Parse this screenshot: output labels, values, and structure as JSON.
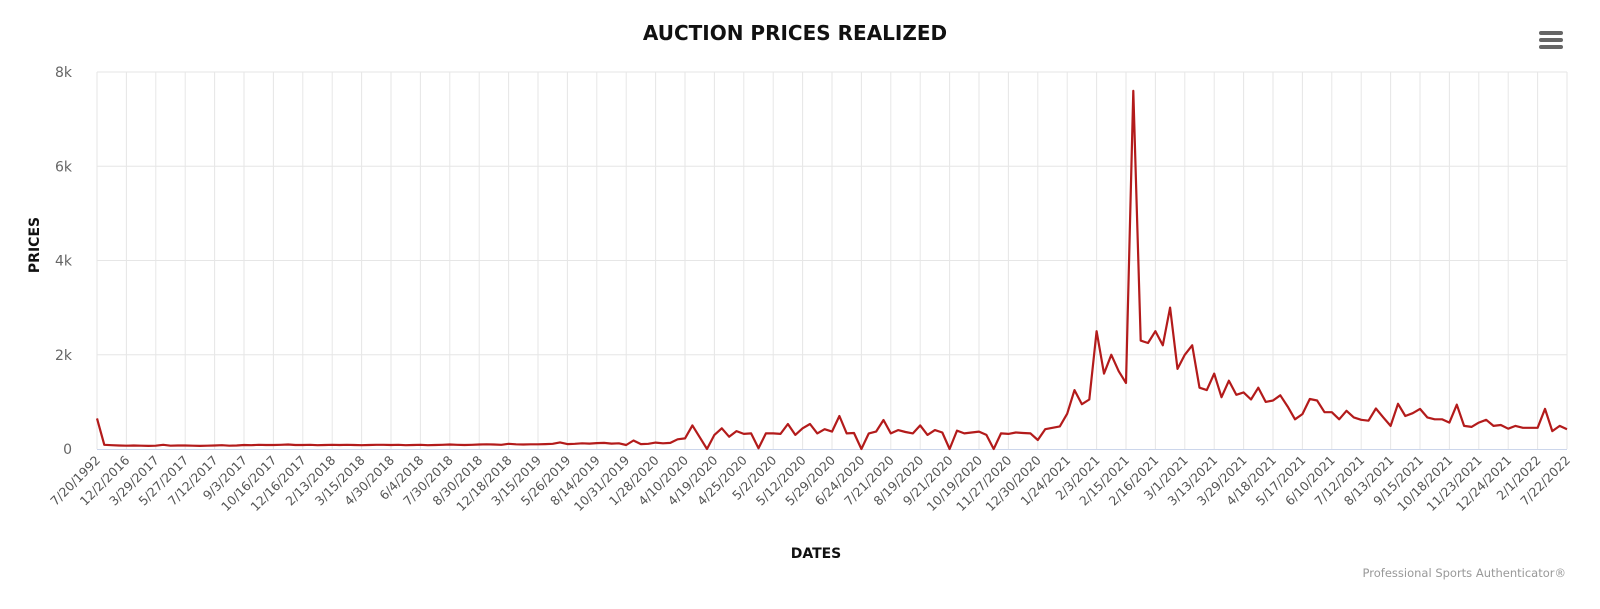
{
  "chart_data": {
    "type": "line",
    "title": "AUCTION PRICES REALIZED",
    "xlabel": "DATES",
    "ylabel": "PRICES",
    "credits": "Professional Sports Authenticator®",
    "ylim": [
      0,
      8000
    ],
    "y_ticks": [
      0,
      2000,
      4000,
      6000,
      8000
    ],
    "y_tick_labels": [
      "0",
      "2k",
      "4k",
      "6k",
      "8k"
    ],
    "grid": true,
    "legend": "none",
    "line_color": "#b31b1b",
    "x_tick_labels": [
      "7/20/1992",
      "12/2/2016",
      "3/29/2017",
      "5/27/2017",
      "7/12/2017",
      "9/3/2017",
      "10/16/2017",
      "12/16/2017",
      "2/13/2018",
      "3/15/2018",
      "4/30/2018",
      "6/4/2018",
      "7/30/2018",
      "8/30/2018",
      "12/18/2018",
      "3/15/2019",
      "5/26/2019",
      "8/14/2019",
      "10/31/2019",
      "1/28/2020",
      "4/10/2020",
      "4/19/2020",
      "4/25/2020",
      "5/2/2020",
      "5/12/2020",
      "5/29/2020",
      "6/24/2020",
      "7/21/2020",
      "8/19/2020",
      "9/21/2020",
      "10/19/2020",
      "11/27/2020",
      "12/30/2020",
      "1/24/2021",
      "2/3/2021",
      "2/15/2021",
      "2/16/2021",
      "3/1/2021",
      "3/13/2021",
      "3/29/2021",
      "4/18/2021",
      "5/17/2021",
      "6/10/2021",
      "7/12/2021",
      "8/13/2021",
      "9/15/2021",
      "10/18/2021",
      "11/23/2021",
      "12/24/2021",
      "2/1/2022",
      "7/22/2022"
    ],
    "series": [
      {
        "values": [
          650,
          90,
          80,
          75,
          70,
          75,
          70,
          65,
          70,
          90,
          70,
          75,
          75,
          70,
          65,
          70,
          75,
          80,
          70,
          75,
          85,
          80,
          90,
          85,
          85,
          90,
          95,
          85,
          85,
          90,
          80,
          85,
          90,
          85,
          90,
          85,
          80,
          85,
          90,
          90,
          85,
          90,
          80,
          85,
          90,
          80,
          85,
          90,
          95,
          90,
          85,
          90,
          95,
          100,
          95,
          90,
          110,
          100,
          95,
          100,
          100,
          105,
          110,
          140,
          105,
          110,
          120,
          115,
          125,
          130,
          115,
          120,
          85,
          180,
          105,
          110,
          135,
          120,
          130,
          205,
          225,
          500,
          250,
          0,
          300,
          440,
          260,
          380,
          320,
          330,
          15,
          330,
          330,
          320,
          530,
          300,
          440,
          530,
          330,
          420,
          370,
          700,
          330,
          340,
          0,
          330,
          370,
          615,
          330,
          400,
          360,
          330,
          500,
          300,
          400,
          350,
          0,
          390,
          330,
          350,
          370,
          300,
          0,
          330,
          320,
          350,
          340,
          330,
          190,
          420,
          450,
          480,
          750,
          1250,
          950,
          1050,
          2500,
          1600,
          2000,
          1650,
          1400,
          7600,
          2300,
          2250,
          2500,
          2200,
          3000,
          1700,
          2000,
          2200,
          1300,
          1250,
          1600,
          1100,
          1450,
          1150,
          1200,
          1050,
          1300,
          1000,
          1030,
          1140,
          900,
          630,
          740,
          1060,
          1030,
          780,
          780,
          630,
          810,
          670,
          620,
          600,
          860,
          670,
          490,
          960,
          700,
          760,
          850,
          670,
          630,
          630,
          560,
          940,
          490,
          470,
          560,
          620,
          490,
          510,
          430,
          490,
          450,
          450,
          450,
          850,
          380,
          490,
          420
        ]
      }
    ]
  },
  "menu": {
    "icon": "hamburger-menu-icon"
  }
}
